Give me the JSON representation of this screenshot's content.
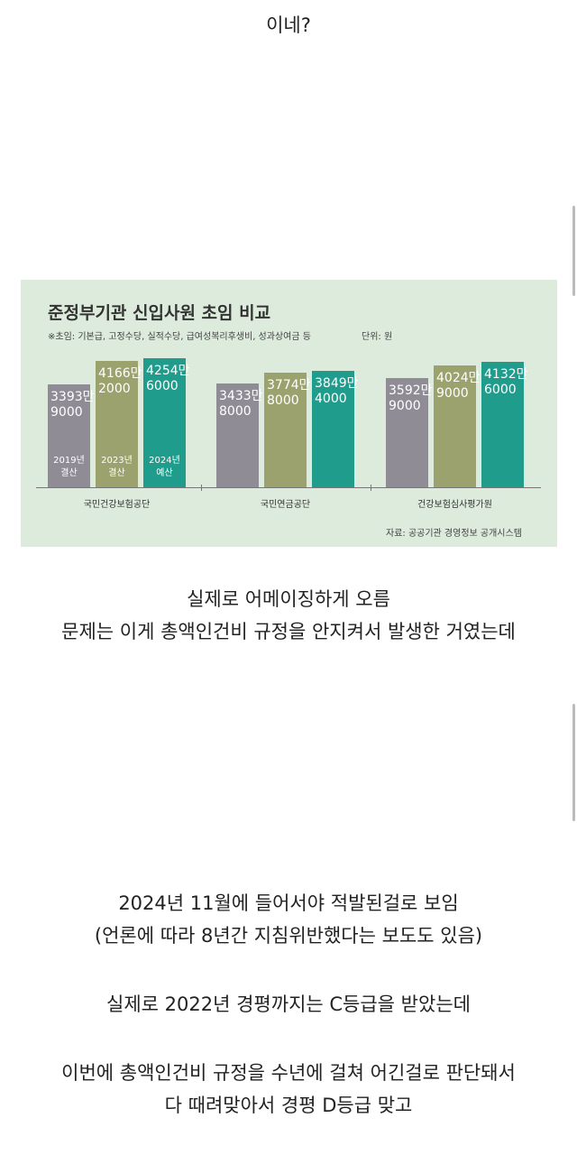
{
  "post": {
    "top_lines": [
      "이네?"
    ],
    "paragraphs": [
      [
        "실제로 어메이징하게 오름",
        "문제는 이게 총액인건비 규정을 안지켜서 발생한 거였는데"
      ],
      [
        "2024년 11월에 들어서야 적발된걸로 보임",
        "(언론에 따라 8년간 지침위반했다는 보도도 있음)"
      ],
      [
        "실제로 2022년 경평까지는 C등급을 받았는데"
      ],
      [
        "이번에 총액인건비 규정을 수년에 걸쳐 어긴걸로 판단돼서",
        "다 때려맞아서 경평 D등급 맞고"
      ]
    ]
  },
  "chart_data": {
    "type": "bar",
    "title": "준정부기관 신입사원 초임 비교",
    "subtitle": "※초임: 기본급, 고정수당, 실적수당, 급여성복리후생비, 성과상여금 등",
    "unit": "단위: 원",
    "source": "자료: 공공기관 경영정보 공개시스템",
    "categories": [
      "국민건강보험공단",
      "국민연금공단",
      "건강보험심사평가원"
    ],
    "series": [
      {
        "name": "2019년\n결산",
        "color": "#8f8c96",
        "values": [
          33939000,
          34338000,
          35929000
        ],
        "value_labels": [
          "3393만\n9000",
          "3433만\n8000",
          "3592만\n9000"
        ]
      },
      {
        "name": "2023년\n결산",
        "color": "#9ca26e",
        "values": [
          41662000,
          37748000,
          40249000
        ],
        "value_labels": [
          "4166만\n2000",
          "3774만\n8000",
          "4024만\n9000"
        ]
      },
      {
        "name": "2024년\n예산",
        "color": "#1f9c8b",
        "values": [
          42546000,
          38494000,
          41326000
        ],
        "value_labels": [
          "4254만\n6000",
          "3849만\n4000",
          "4132만\n6000"
        ]
      }
    ]
  }
}
